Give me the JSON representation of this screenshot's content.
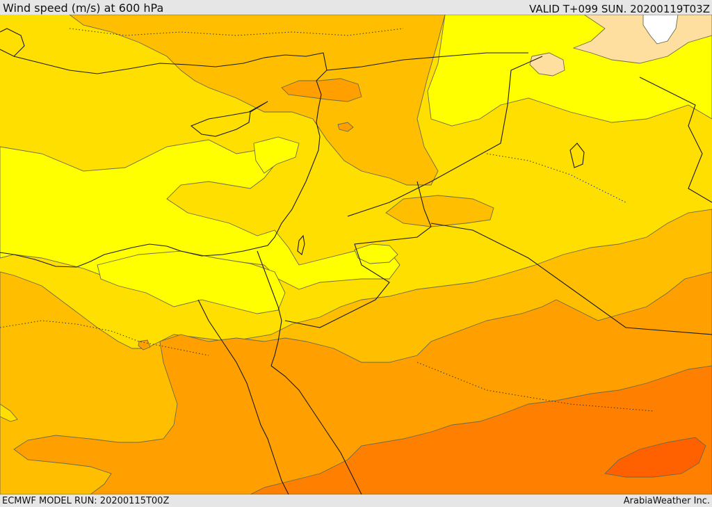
{
  "header": {
    "title": "Wind speed (m/s) at 600 hPa",
    "valid_time": "VALID T+099 SUN. 20200119T03Z"
  },
  "footer": {
    "model_run": "ECMWF MODEL RUN: 20200115T00Z",
    "credit": "ArabiaWeather Inc."
  },
  "map": {
    "field": "wind speed at 600 hPa",
    "colors": {
      "lightest_yellow": "#ffff00",
      "golden_yellow": "#ffdf00",
      "yellow_orange": "#ffbf00",
      "orange": "#ff9f00",
      "dark_orange": "#ff7f00",
      "red_orange": "#ff6000",
      "peach": "#ffdfa0",
      "white": "#ffffff"
    }
  }
}
